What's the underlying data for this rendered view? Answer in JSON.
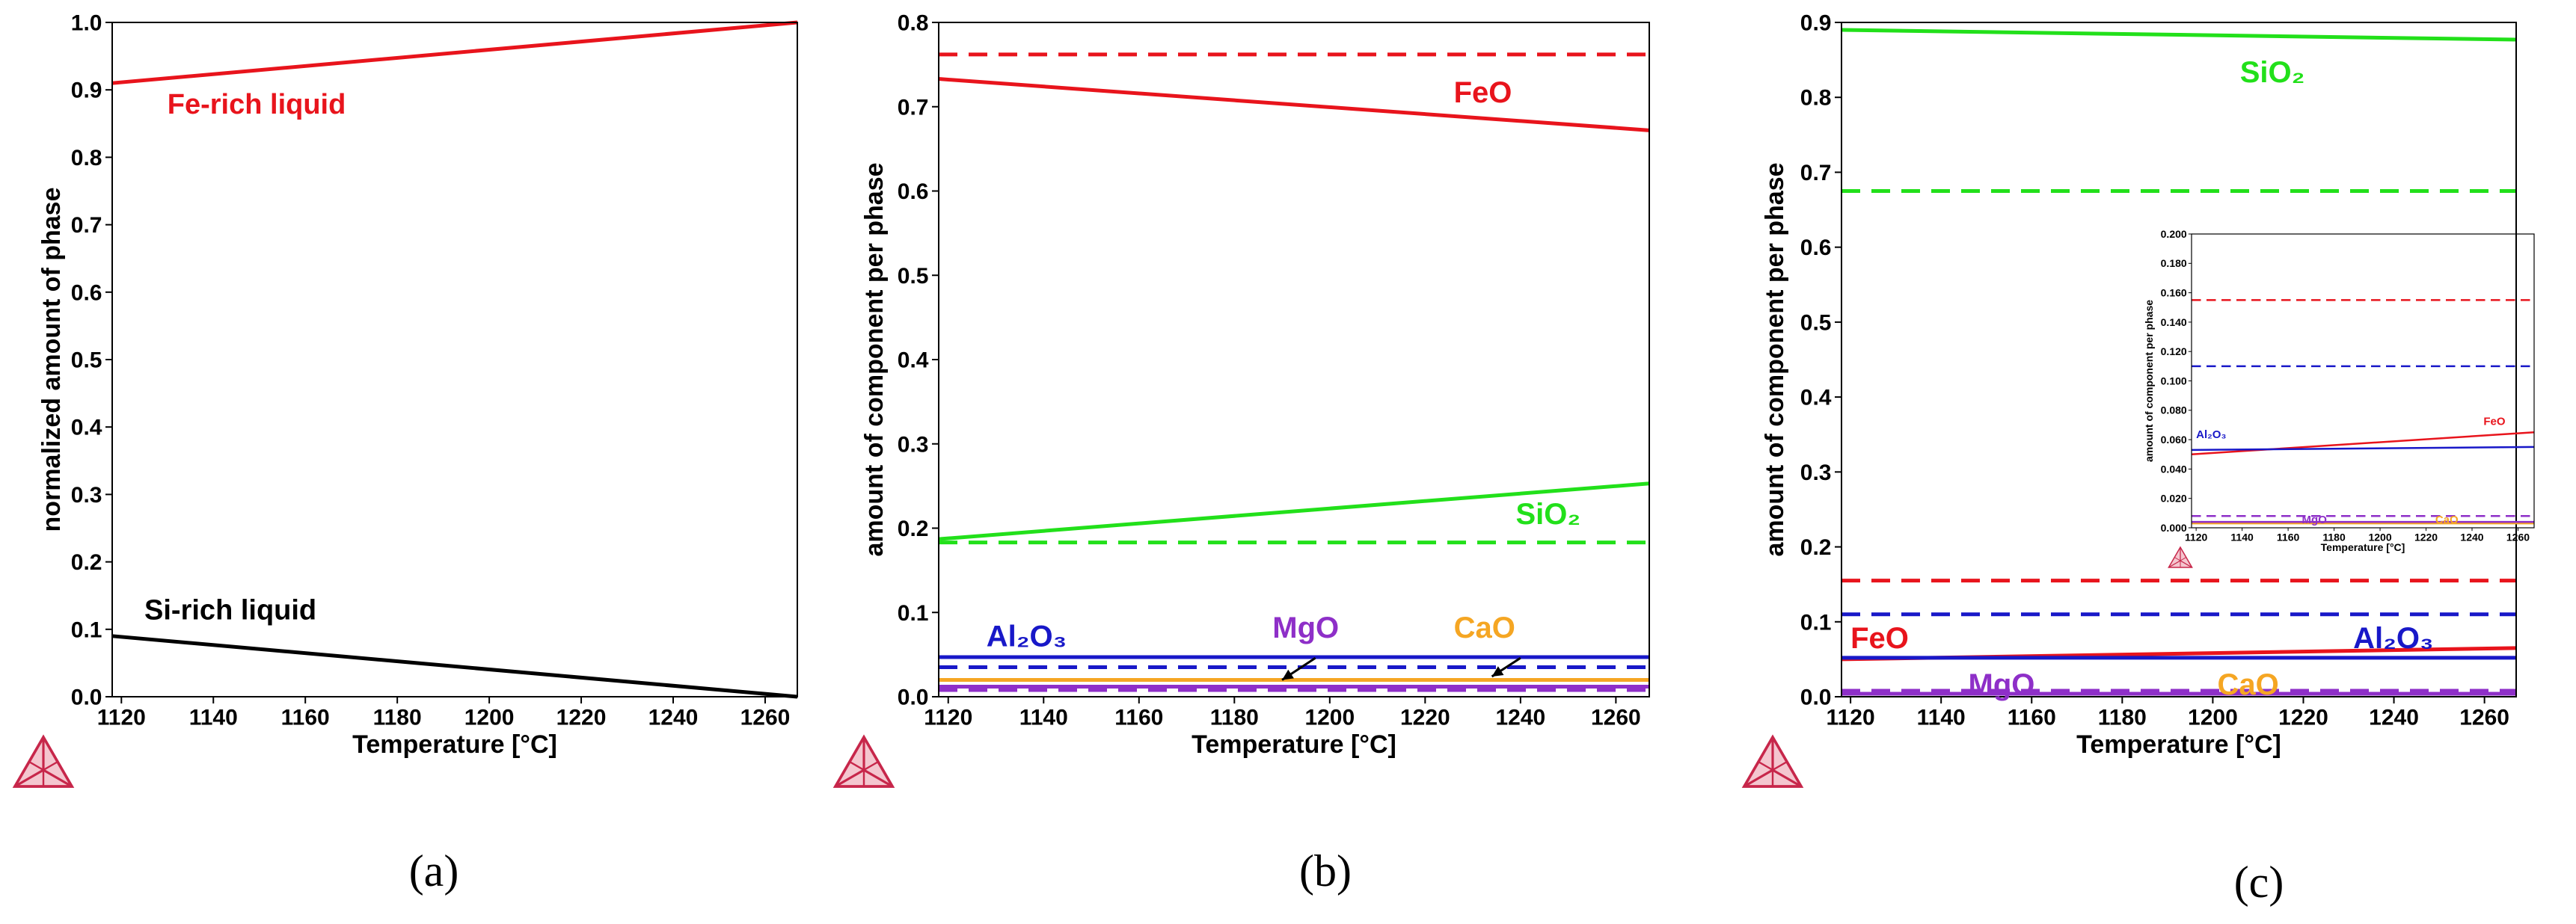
{
  "chart_data": [
    {
      "id": "a",
      "type": "line",
      "caption": "(a)",
      "xlabel": "Temperature [°C]",
      "ylabel": "normalized amount of phase",
      "xlim": [
        1118,
        1267
      ],
      "ylim": [
        0,
        1.0
      ],
      "xticks": [
        "1120",
        "1140",
        "1160",
        "1180",
        "1200",
        "1220",
        "1240",
        "1260"
      ],
      "yticks": [
        "0.0",
        "0.1",
        "0.2",
        "0.3",
        "0.4",
        "0.5",
        "0.6",
        "0.7",
        "0.8",
        "0.9",
        "1.0"
      ],
      "series": [
        {
          "name": "Fe-rich liquid",
          "color": "#e8141c",
          "dash": false,
          "x": [
            1118,
            1267
          ],
          "y": [
            0.91,
            1.0
          ]
        },
        {
          "name": "Si-rich liquid",
          "color": "#000000",
          "dash": false,
          "x": [
            1118,
            1267
          ],
          "y": [
            0.09,
            0.0
          ]
        }
      ],
      "labels": [
        {
          "text": "Fe-rich liquid",
          "color": "#e8141c",
          "x": 1130,
          "y": 0.865,
          "size": 38
        },
        {
          "text": "Si-rich liquid",
          "color": "#000000",
          "x": 1125,
          "y": 0.115,
          "size": 38
        }
      ],
      "arrows": []
    },
    {
      "id": "b",
      "type": "line",
      "caption": "(b)",
      "xlabel": "Temperature [°C]",
      "ylabel": "amount of component per phase",
      "xlim": [
        1118,
        1267
      ],
      "ylim": [
        0,
        0.8
      ],
      "xticks": [
        "1120",
        "1140",
        "1160",
        "1180",
        "1200",
        "1220",
        "1240",
        "1260"
      ],
      "yticks": [
        "0.0",
        "0.1",
        "0.2",
        "0.3",
        "0.4",
        "0.5",
        "0.6",
        "0.7",
        "0.8"
      ],
      "series": [
        {
          "name": "FeO (dashed)",
          "color": "#e8141c",
          "dash": true,
          "x": [
            1118,
            1267
          ],
          "y": [
            0.762,
            0.762
          ]
        },
        {
          "name": "FeO",
          "color": "#e8141c",
          "dash": false,
          "x": [
            1118,
            1267
          ],
          "y": [
            0.733,
            0.672
          ]
        },
        {
          "name": "SiO2",
          "color": "#22e01a",
          "dash": false,
          "x": [
            1118,
            1267
          ],
          "y": [
            0.187,
            0.253
          ]
        },
        {
          "name": "SiO2 (dashed)",
          "color": "#22e01a",
          "dash": true,
          "x": [
            1118,
            1267
          ],
          "y": [
            0.183,
            0.183
          ]
        },
        {
          "name": "Al2O3",
          "color": "#1818c8",
          "dash": false,
          "x": [
            1118,
            1267
          ],
          "y": [
            0.047,
            0.047
          ]
        },
        {
          "name": "Al2O3 (dashed)",
          "color": "#1818c8",
          "dash": true,
          "x": [
            1118,
            1267
          ],
          "y": [
            0.035,
            0.035
          ]
        },
        {
          "name": "CaO",
          "color": "#f5a623",
          "dash": false,
          "x": [
            1118,
            1267
          ],
          "y": [
            0.02,
            0.02
          ]
        },
        {
          "name": "MgO",
          "color": "#8e2fc8",
          "dash": false,
          "x": [
            1118,
            1267
          ],
          "y": [
            0.012,
            0.012
          ]
        },
        {
          "name": "MgO (dashed)",
          "color": "#8e2fc8",
          "dash": true,
          "x": [
            1118,
            1267
          ],
          "y": [
            0.008,
            0.008
          ]
        }
      ],
      "labels": [
        {
          "text": "FeO",
          "color": "#e8141c",
          "x": 1226,
          "y": 0.705,
          "size": 40
        },
        {
          "text": "SiO₂",
          "color": "#22e01a",
          "x": 1239,
          "y": 0.205,
          "size": 40
        },
        {
          "text": "Al₂O₃",
          "color": "#1818c8",
          "x": 1128,
          "y": 0.06,
          "size": 40
        },
        {
          "text": "MgO",
          "color": "#8e2fc8",
          "x": 1188,
          "y": 0.07,
          "size": 40
        },
        {
          "text": "CaO",
          "color": "#f5a623",
          "x": 1226,
          "y": 0.07,
          "size": 40
        }
      ],
      "arrows": [
        {
          "x1": 1197,
          "y1": 0.046,
          "x2": 1190,
          "y2": 0.02
        },
        {
          "x1": 1240,
          "y1": 0.046,
          "x2": 1234,
          "y2": 0.024
        }
      ]
    },
    {
      "id": "c",
      "type": "line",
      "caption": "(c)",
      "xlabel": "Temperature [°C]",
      "ylabel": "amount of component per phase",
      "xlim": [
        1118,
        1267
      ],
      "ylim": [
        0,
        0.9
      ],
      "xticks": [
        "1120",
        "1140",
        "1160",
        "1180",
        "1200",
        "1220",
        "1240",
        "1260"
      ],
      "yticks": [
        "0.0",
        "0.1",
        "0.2",
        "0.3",
        "0.4",
        "0.5",
        "0.6",
        "0.7",
        "0.8",
        "0.9"
      ],
      "series": [
        {
          "name": "SiO2",
          "color": "#22e01a",
          "dash": false,
          "x": [
            1118,
            1267
          ],
          "y": [
            0.89,
            0.877
          ]
        },
        {
          "name": "SiO2 (dashed)",
          "color": "#22e01a",
          "dash": true,
          "x": [
            1118,
            1267
          ],
          "y": [
            0.675,
            0.675
          ]
        },
        {
          "name": "FeO (dashed)",
          "color": "#e8141c",
          "dash": true,
          "x": [
            1118,
            1267
          ],
          "y": [
            0.155,
            0.155
          ]
        },
        {
          "name": "Al2O3 (dashed)",
          "color": "#1818c8",
          "dash": true,
          "x": [
            1118,
            1267
          ],
          "y": [
            0.11,
            0.11
          ]
        },
        {
          "name": "FeO",
          "color": "#e8141c",
          "dash": false,
          "x": [
            1118,
            1267
          ],
          "y": [
            0.05,
            0.065
          ]
        },
        {
          "name": "Al2O3",
          "color": "#1818c8",
          "dash": false,
          "x": [
            1118,
            1267
          ],
          "y": [
            0.052,
            0.052
          ]
        },
        {
          "name": "MgO (dashed)",
          "color": "#8e2fc8",
          "dash": true,
          "x": [
            1118,
            1267
          ],
          "y": [
            0.008,
            0.008
          ]
        },
        {
          "name": "MgO",
          "color": "#8e2fc8",
          "dash": false,
          "x": [
            1118,
            1267
          ],
          "y": [
            0.004,
            0.004
          ]
        }
      ],
      "labels": [
        {
          "text": "SiO₂",
          "color": "#22e01a",
          "x": 1206,
          "y": 0.82,
          "size": 40
        },
        {
          "text": "FeO",
          "color": "#e8141c",
          "x": 1120,
          "y": 0.065,
          "size": 40
        },
        {
          "text": "Al₂O₃",
          "color": "#1818c8",
          "x": 1231,
          "y": 0.065,
          "size": 40
        },
        {
          "text": "MgO",
          "color": "#8e2fc8",
          "x": 1146,
          "y": 0.003,
          "size": 40
        },
        {
          "text": "CaO",
          "color": "#f5a623",
          "x": 1201,
          "y": 0.003,
          "size": 40
        }
      ],
      "arrows": []
    },
    {
      "id": "c-inset",
      "type": "line",
      "caption": "",
      "xlabel": "Temperature [°C]",
      "ylabel": "amount of component per phase",
      "xlim": [
        1118,
        1267
      ],
      "ylim": [
        0,
        0.2
      ],
      "xticks": [
        "1120",
        "1140",
        "1160",
        "1180",
        "1200",
        "1220",
        "1240",
        "1260"
      ],
      "yticks": [
        "0.000",
        "0.020",
        "0.040",
        "0.060",
        "0.080",
        "0.100",
        "0.120",
        "0.140",
        "0.160",
        "0.180",
        "0.200"
      ],
      "series": [
        {
          "name": "FeO (dashed)",
          "color": "#e8141c",
          "dash": true,
          "x": [
            1118,
            1267
          ],
          "y": [
            0.155,
            0.155
          ]
        },
        {
          "name": "Al2O3 (dashed)",
          "color": "#1818c8",
          "dash": true,
          "x": [
            1118,
            1267
          ],
          "y": [
            0.11,
            0.11
          ]
        },
        {
          "name": "FeO",
          "color": "#e8141c",
          "dash": false,
          "x": [
            1118,
            1267
          ],
          "y": [
            0.05,
            0.065
          ]
        },
        {
          "name": "Al2O3",
          "color": "#1818c8",
          "dash": false,
          "x": [
            1118,
            1267
          ],
          "y": [
            0.053,
            0.055
          ]
        },
        {
          "name": "MgO (dashed)",
          "color": "#8e2fc8",
          "dash": true,
          "x": [
            1118,
            1267
          ],
          "y": [
            0.008,
            0.008
          ]
        },
        {
          "name": "CaO",
          "color": "#f5a623",
          "dash": false,
          "x": [
            1118,
            1267
          ],
          "y": [
            0.003,
            0.003
          ]
        },
        {
          "name": "MgO",
          "color": "#8e2fc8",
          "dash": false,
          "x": [
            1118,
            1267
          ],
          "y": [
            0.004,
            0.004
          ]
        }
      ],
      "labels": [
        {
          "text": "FeO",
          "color": "#e8141c",
          "x": 1245,
          "y": 0.07,
          "size": 15
        },
        {
          "text": "Al₂O₃",
          "color": "#1818c8",
          "x": 1120,
          "y": 0.061,
          "size": 15
        },
        {
          "text": "MgO",
          "color": "#8e2fc8",
          "x": 1166,
          "y": 0.003,
          "size": 15
        },
        {
          "text": "CaO",
          "color": "#f5a623",
          "x": 1224,
          "y": 0.003,
          "size": 15
        }
      ],
      "arrows": []
    }
  ]
}
